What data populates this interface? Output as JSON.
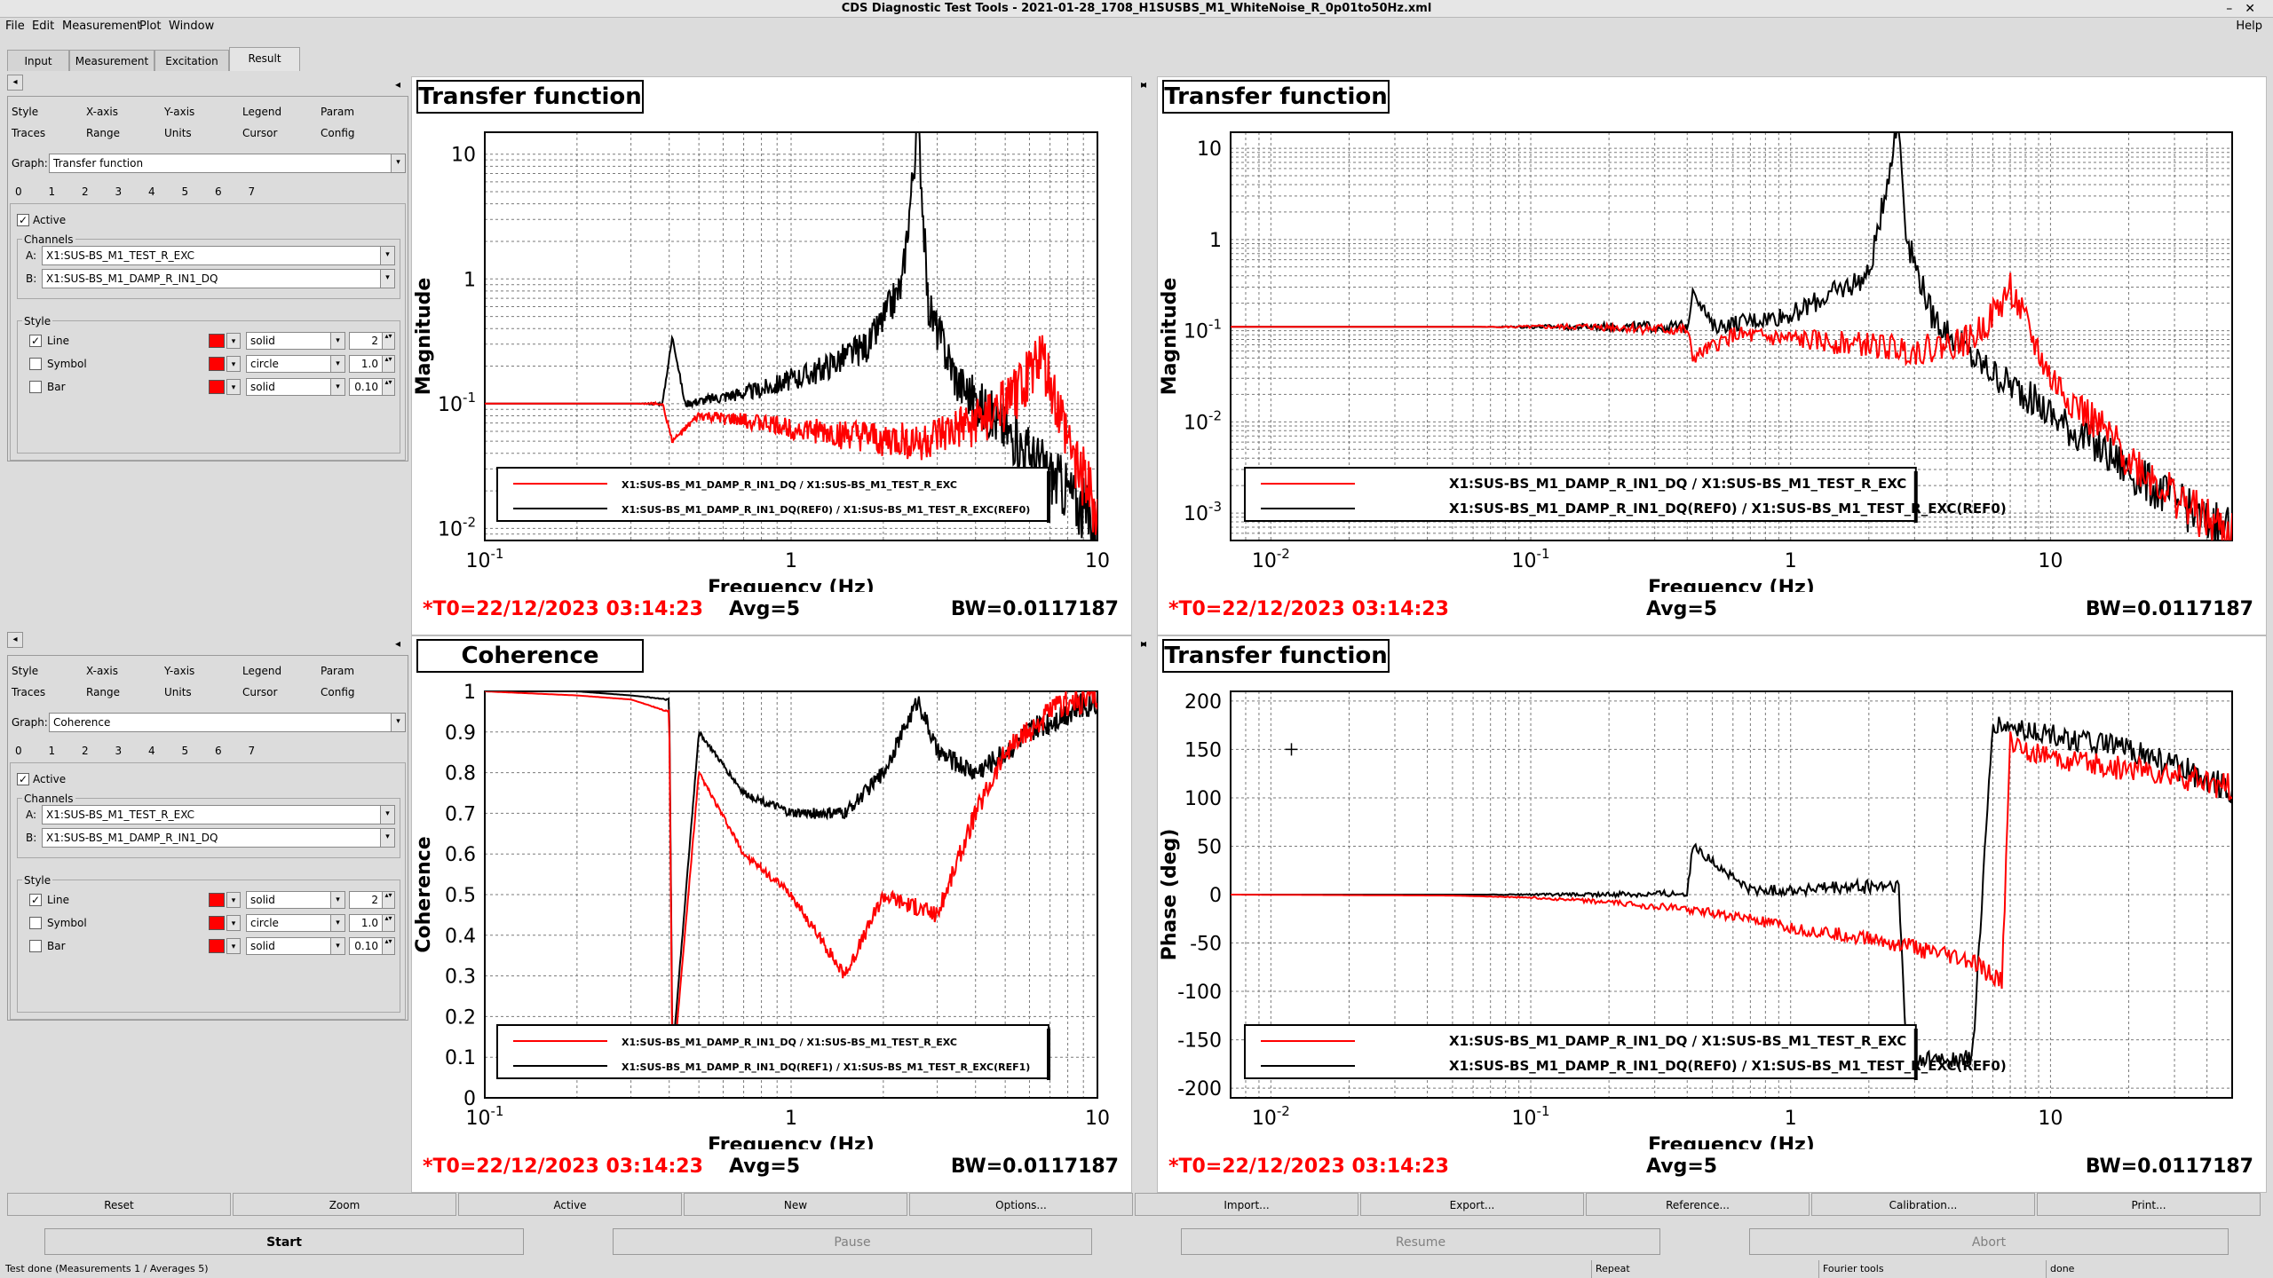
{
  "window": {
    "title": "CDS Diagnostic Test Tools - 2021-01-28_1708_H1SUSBS_M1_WhiteNoise_R_0p01to50Hz.xml"
  },
  "menu": [
    "File",
    "Edit",
    "Measurement",
    "Plot",
    "Window",
    "Help"
  ],
  "main_tabs": [
    "Input",
    "Measurement",
    "Excitation",
    "Result"
  ],
  "selected_main_tab": "Result",
  "panels": [
    {
      "tabs_row1": [
        "Style",
        "X-axis",
        "Y-axis",
        "Legend",
        "Param"
      ],
      "tabs_row2": [
        "Traces",
        "Range",
        "Units",
        "Cursor",
        "Config"
      ],
      "graph_label": "Graph:",
      "graph_value": "Transfer function",
      "trace_numbers": [
        "0",
        "1",
        "2",
        "3",
        "4",
        "5",
        "6",
        "7"
      ],
      "active_label": "Active",
      "channels_label": "Channels",
      "channel_a_label": "A:",
      "channel_a": "X1:SUS-BS_M1_TEST_R_EXC",
      "channel_b_label": "B:",
      "channel_b": "X1:SUS-BS_M1_DAMP_R_IN1_DQ",
      "style_label": "Style",
      "line_label": "Line",
      "line_style": "solid",
      "line_width": "2",
      "symbol_label": "Symbol",
      "symbol_style": "circle",
      "symbol_size": "1.0",
      "bar_label": "Bar",
      "bar_style": "solid",
      "bar_width": "0.10"
    },
    {
      "tabs_row1": [
        "Style",
        "X-axis",
        "Y-axis",
        "Legend",
        "Param"
      ],
      "tabs_row2": [
        "Traces",
        "Range",
        "Units",
        "Cursor",
        "Config"
      ],
      "graph_label": "Graph:",
      "graph_value": "Coherence",
      "trace_numbers": [
        "0",
        "1",
        "2",
        "3",
        "4",
        "5",
        "6",
        "7"
      ],
      "active_label": "Active",
      "channels_label": "Channels",
      "channel_a_label": "A:",
      "channel_a": "X1:SUS-BS_M1_TEST_R_EXC",
      "channel_b_label": "B:",
      "channel_b": "X1:SUS-BS_M1_DAMP_R_IN1_DQ",
      "style_label": "Style",
      "line_label": "Line",
      "line_style": "solid",
      "line_width": "2",
      "symbol_label": "Symbol",
      "symbol_style": "circle",
      "symbol_size": "1.0",
      "bar_label": "Bar",
      "bar_style": "solid",
      "bar_width": "0.10"
    }
  ],
  "plots": [
    {
      "title": "Transfer function",
      "ylabel": "Magnitude",
      "xlabel": "Frequency (Hz)",
      "t0": "*T0=22/12/2023 03:14:23",
      "avg": "Avg=5",
      "bw": "BW=0.0117187",
      "legend": [
        "X1:SUS-BS_M1_DAMP_R_IN1_DQ / X1:SUS-BS_M1_TEST_R_EXC",
        "X1:SUS-BS_M1_DAMP_R_IN1_DQ(REF0) / X1:SUS-BS_M1_TEST_R_EXC(REF0)"
      ]
    },
    {
      "title": "Transfer function",
      "ylabel": "Magnitude",
      "xlabel": "Frequency (Hz)",
      "t0": "*T0=22/12/2023 03:14:23",
      "avg": "Avg=5",
      "bw": "BW=0.0117187",
      "legend": [
        "X1:SUS-BS_M1_DAMP_R_IN1_DQ / X1:SUS-BS_M1_TEST_R_EXC",
        "X1:SUS-BS_M1_DAMP_R_IN1_DQ(REF0) / X1:SUS-BS_M1_TEST_R_EXC(REF0)"
      ]
    },
    {
      "title": "Coherence",
      "ylabel": "Coherence",
      "xlabel": "Frequency (Hz)",
      "t0": "*T0=22/12/2023 03:14:23",
      "avg": "Avg=5",
      "bw": "BW=0.0117187",
      "legend": [
        "X1:SUS-BS_M1_DAMP_R_IN1_DQ / X1:SUS-BS_M1_TEST_R_EXC",
        "X1:SUS-BS_M1_DAMP_R_IN1_DQ(REF1) / X1:SUS-BS_M1_TEST_R_EXC(REF1)"
      ]
    },
    {
      "title": "Transfer function",
      "ylabel": "Phase (deg)",
      "xlabel": "Frequency (Hz)",
      "t0": "*T0=22/12/2023 03:14:23",
      "avg": "Avg=5",
      "bw": "BW=0.0117187",
      "legend": [
        "X1:SUS-BS_M1_DAMP_R_IN1_DQ / X1:SUS-BS_M1_TEST_R_EXC",
        "X1:SUS-BS_M1_DAMP_R_IN1_DQ(REF0) / X1:SUS-BS_M1_TEST_R_EXC(REF0)"
      ]
    }
  ],
  "toolbar": [
    "Reset",
    "Zoom",
    "Active",
    "New",
    "Options...",
    "Import...",
    "Export...",
    "Reference...",
    "Calibration...",
    "Print..."
  ],
  "actions": [
    "Start",
    "Pause",
    "Resume",
    "Abort"
  ],
  "status": [
    "Test done (Measurements 1 / Averages 5)",
    "Repeat",
    "Fourier tools",
    "done"
  ],
  "colors": {
    "live_trace": "#ff0000",
    "reference_trace": "#000000",
    "footer_t0": "#ff0000"
  },
  "chart_data": [
    {
      "type": "line",
      "title": "Transfer function",
      "xlabel": "Frequency (Hz)",
      "ylabel": "Magnitude",
      "xscale": "log",
      "yscale": "log",
      "xlim": [
        0.1,
        10
      ],
      "ylim": [
        0.008,
        15
      ],
      "grid": true,
      "legend_position": "bottom",
      "xticks": [
        "10^-1",
        "1",
        "10"
      ],
      "yticks": [
        "10^-2",
        "10^-1",
        "1",
        "10"
      ],
      "series": [
        {
          "name": "X1:SUS-BS_M1_DAMP_R_IN1_DQ / X1:SUS-BS_M1_TEST_R_EXC",
          "color": "#ff0000",
          "x": [
            0.1,
            0.15,
            0.25,
            0.38,
            0.41,
            0.5,
            0.8,
            1.2,
            2.0,
            2.5,
            2.8,
            3.5,
            4.5,
            5.5,
            6.5,
            7.0,
            8.0,
            9.0,
            10.0
          ],
          "y": [
            0.1,
            0.1,
            0.1,
            0.1,
            0.05,
            0.08,
            0.07,
            0.06,
            0.05,
            0.05,
            0.05,
            0.06,
            0.08,
            0.12,
            0.25,
            0.14,
            0.05,
            0.025,
            0.012
          ]
        },
        {
          "name": "X1:SUS-BS_M1_DAMP_R_IN1_DQ(REF0) / X1:SUS-BS_M1_TEST_R_EXC(REF0)",
          "color": "#000000",
          "x": [
            0.1,
            0.15,
            0.25,
            0.38,
            0.41,
            0.45,
            0.8,
            1.2,
            1.8,
            2.3,
            2.6,
            2.8,
            3.5,
            4.5,
            6.0,
            8.0,
            10.0
          ],
          "y": [
            0.1,
            0.1,
            0.1,
            0.1,
            0.35,
            0.1,
            0.13,
            0.18,
            0.3,
            0.9,
            18,
            0.6,
            0.15,
            0.08,
            0.04,
            0.02,
            0.01
          ]
        }
      ]
    },
    {
      "type": "line",
      "title": "Transfer function",
      "xlabel": "Frequency (Hz)",
      "ylabel": "Magnitude",
      "xscale": "log",
      "yscale": "log",
      "xlim": [
        0.007,
        50
      ],
      "ylim": [
        0.0005,
        15
      ],
      "grid": true,
      "legend_position": "bottom",
      "xticks": [
        "10^-2",
        "10^-1",
        "1",
        "10"
      ],
      "yticks": [
        "10^-3",
        "10^-2",
        "10^-1",
        "1",
        "10"
      ],
      "series": [
        {
          "name": "X1:SUS-BS_M1_DAMP_R_IN1_DQ / X1:SUS-BS_M1_TEST_R_EXC",
          "color": "#ff0000",
          "x": [
            0.007,
            0.05,
            0.2,
            0.4,
            0.42,
            0.6,
            1.0,
            2.0,
            3.0,
            5.0,
            6.5,
            7.0,
            8.0,
            10.0,
            20.0,
            40.0,
            50.0
          ],
          "y": [
            0.11,
            0.11,
            0.11,
            0.1,
            0.05,
            0.09,
            0.08,
            0.07,
            0.06,
            0.08,
            0.2,
            0.3,
            0.12,
            0.03,
            0.004,
            0.0008,
            0.0006
          ]
        },
        {
          "name": "X1:SUS-BS_M1_DAMP_R_IN1_DQ(REF0) / X1:SUS-BS_M1_TEST_R_EXC(REF0)",
          "color": "#000000",
          "x": [
            0.007,
            0.05,
            0.2,
            0.4,
            0.42,
            0.5,
            1.0,
            2.0,
            2.6,
            2.8,
            3.5,
            5.0,
            8.0,
            10.0,
            20.0,
            40.0,
            50.0
          ],
          "y": [
            0.11,
            0.11,
            0.11,
            0.11,
            0.3,
            0.11,
            0.15,
            0.4,
            20,
            1.0,
            0.15,
            0.05,
            0.02,
            0.012,
            0.003,
            0.0008,
            0.0006
          ]
        }
      ]
    },
    {
      "type": "line",
      "title": "Coherence",
      "xlabel": "Frequency (Hz)",
      "ylabel": "Coherence",
      "xscale": "log",
      "yscale": "linear",
      "xlim": [
        0.1,
        10
      ],
      "ylim": [
        0,
        1
      ],
      "grid": true,
      "legend_position": "bottom",
      "xticks": [
        "10^-1",
        "1",
        "10"
      ],
      "yticks": [
        "0",
        "0.1",
        "0.2",
        "0.3",
        "0.4",
        "0.5",
        "0.6",
        "0.7",
        "0.8",
        "0.9",
        "1"
      ],
      "series": [
        {
          "name": "X1:SUS-BS_M1_DAMP_R_IN1_DQ / X1:SUS-BS_M1_TEST_R_EXC",
          "color": "#ff0000",
          "x": [
            0.1,
            0.2,
            0.3,
            0.4,
            0.41,
            0.5,
            0.7,
            1.0,
            1.5,
            2.0,
            3.0,
            4.0,
            5.0,
            6.0,
            7.0,
            8.0,
            10.0
          ],
          "y": [
            1.0,
            0.99,
            0.98,
            0.95,
            0.05,
            0.8,
            0.6,
            0.5,
            0.3,
            0.5,
            0.45,
            0.7,
            0.85,
            0.9,
            0.95,
            0.97,
            0.99
          ]
        },
        {
          "name": "X1:SUS-BS_M1_DAMP_R_IN1_DQ(REF1) / X1:SUS-BS_M1_TEST_R_EXC(REF1)",
          "color": "#000000",
          "x": [
            0.1,
            0.2,
            0.3,
            0.4,
            0.41,
            0.5,
            0.7,
            1.0,
            1.5,
            2.0,
            2.6,
            3.0,
            4.0,
            5.0,
            6.0,
            8.0,
            10.0
          ],
          "y": [
            1.0,
            1.0,
            0.99,
            0.98,
            0.1,
            0.9,
            0.75,
            0.7,
            0.7,
            0.8,
            0.98,
            0.85,
            0.8,
            0.85,
            0.9,
            0.95,
            0.98
          ]
        }
      ]
    },
    {
      "type": "line",
      "title": "Transfer function",
      "xlabel": "Frequency (Hz)",
      "ylabel": "Phase (deg)",
      "xscale": "log",
      "yscale": "linear",
      "xlim": [
        0.007,
        50
      ],
      "ylim": [
        -210,
        210
      ],
      "grid": true,
      "legend_position": "bottom",
      "xticks": [
        "10^-2",
        "10^-1",
        "1",
        "10"
      ],
      "yticks": [
        "-200",
        "-150",
        "-100",
        "-50",
        "0",
        "50",
        "100",
        "150",
        "200"
      ],
      "series": [
        {
          "name": "X1:SUS-BS_M1_DAMP_R_IN1_DQ / X1:SUS-BS_M1_TEST_R_EXC",
          "color": "#ff0000",
          "x": [
            0.007,
            0.05,
            0.1,
            0.2,
            0.4,
            0.7,
            1.0,
            2.0,
            3.0,
            5.0,
            6.5,
            7.0,
            8.0,
            10.0,
            20.0,
            40.0,
            50.0
          ],
          "y": [
            0,
            -1,
            -3,
            -8,
            -15,
            -25,
            -35,
            -45,
            -55,
            -70,
            -90,
            160,
            150,
            140,
            130,
            115,
            110
          ]
        },
        {
          "name": "X1:SUS-BS_M1_DAMP_R_IN1_DQ(REF0) / X1:SUS-BS_M1_TEST_R_EXC(REF0)",
          "color": "#000000",
          "x": [
            0.007,
            0.05,
            0.2,
            0.4,
            0.42,
            0.7,
            1.0,
            2.0,
            2.6,
            2.8,
            5.0,
            6.0,
            8.0,
            10.0,
            20.0,
            40.0,
            50.0
          ],
          "y": [
            0,
            0,
            0,
            2,
            50,
            4,
            5,
            8,
            10,
            -170,
            -170,
            175,
            170,
            165,
            150,
            120,
            110
          ]
        }
      ]
    }
  ]
}
